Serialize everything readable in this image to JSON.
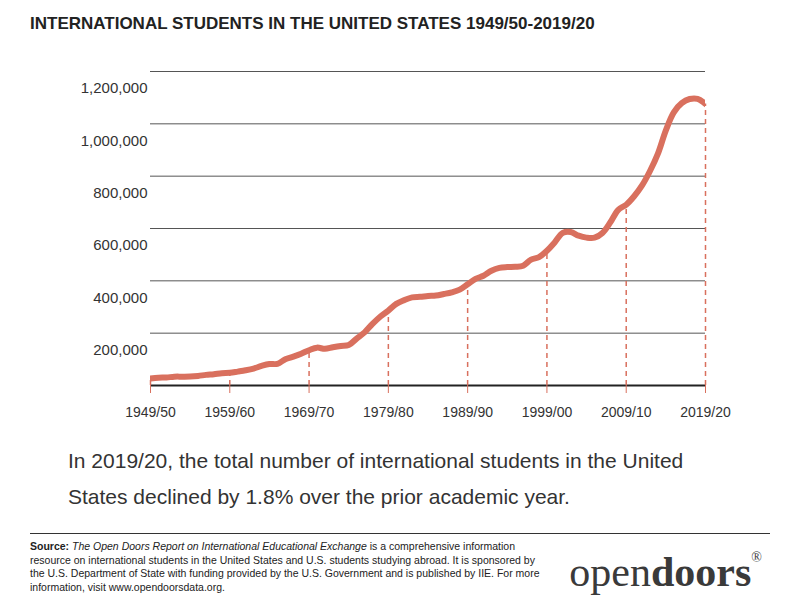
{
  "chart_data": {
    "type": "line",
    "title": "INTERNATIONAL STUDENTS IN THE UNITED STATES 1949/50-2019/20",
    "caption": "In 2019/20, the total number of international students in the United States declined by 1.8% over the prior academic year.",
    "categories": [
      "1949/50",
      null,
      null,
      null,
      null,
      null,
      null,
      null,
      null,
      null,
      "1959/60",
      null,
      null,
      null,
      null,
      null,
      null,
      null,
      null,
      null,
      "1969/70",
      null,
      null,
      null,
      null,
      null,
      null,
      null,
      null,
      null,
      "1979/80",
      null,
      null,
      null,
      null,
      null,
      null,
      null,
      null,
      null,
      "1989/90",
      null,
      null,
      null,
      null,
      null,
      null,
      null,
      null,
      null,
      "1999/00",
      null,
      null,
      null,
      null,
      null,
      null,
      null,
      null,
      null,
      "2009/10",
      null,
      null,
      null,
      null,
      null,
      null,
      null,
      null,
      null,
      "2019/20"
    ],
    "values": [
      26433,
      29813,
      30462,
      33675,
      33833,
      34232,
      36494,
      40666,
      43391,
      47245,
      48486,
      53107,
      58086,
      64705,
      74814,
      82045,
      82709,
      100262,
      110315,
      121362,
      134959,
      144708,
      140126,
      146097,
      151066,
      154580,
      179344,
      203068,
      235509,
      263938,
      286343,
      311882,
      326299,
      336985,
      338894,
      342113,
      343777,
      349609,
      356187,
      366354,
      386851,
      407529,
      419585,
      438618,
      449749,
      452653,
      453787,
      457984,
      481280,
      490933,
      514723,
      547867,
      582996,
      586323,
      572509,
      565039,
      564766,
      582984,
      623805,
      671616,
      690923,
      723277,
      764495,
      819644,
      886052,
      974926,
      1043839,
      1078822,
      1094792,
      1095299,
      1075496
    ],
    "color": "#d9705e",
    "ylim": [
      0,
      1200000
    ],
    "yticks": [
      {
        "value": 200000,
        "label": "200,000"
      },
      {
        "value": 400000,
        "label": "400,000"
      },
      {
        "value": 600000,
        "label": "600,000"
      },
      {
        "value": 800000,
        "label": "800,000"
      },
      {
        "value": 1000000,
        "label": "1,000,000"
      },
      {
        "value": 1200000,
        "label": "1,200,000"
      }
    ],
    "grid": true
  },
  "footer": {
    "source_label": "Source:",
    "source_title": "The Open Doors Report on International Educational Exchange",
    "source_text": "is a comprehensive information resource on international students in the United States and U.S. students studying abroad. It is sponsored by the U.S. Department of State with funding provided by the U.S. Government and is published by IIE. For more information, visit www.opendoorsdata.org.",
    "logo_light": "open",
    "logo_bold": "doors",
    "logo_mark": "®"
  }
}
